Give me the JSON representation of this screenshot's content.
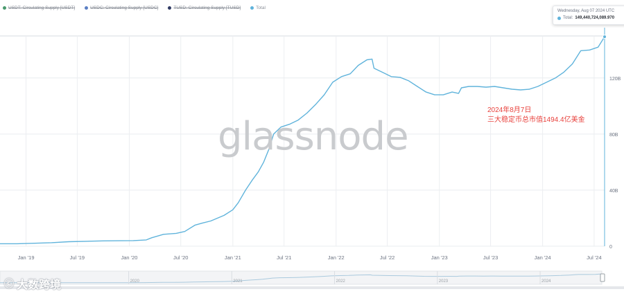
{
  "legend": [
    {
      "label": "USDT: Circulating Supply [USDT]",
      "color": "#4a9a6e",
      "struck": true
    },
    {
      "label": "USDC: Circulating Supply [USDC]",
      "color": "#5b7fc4",
      "struck": true
    },
    {
      "label": "TUSD: Circulating Supply [TUSD]",
      "color": "#2f3a63",
      "struck": true
    },
    {
      "label": "Total",
      "color": "#5fb3db",
      "struck": false
    }
  ],
  "tooltip": {
    "date": "Wednesday, Aug 07 2024 UTC",
    "label": "Total:",
    "value": "149,440,724,089.970"
  },
  "watermark": "glassnode",
  "annotation": {
    "line1": "2024年8月7日",
    "line2": "三大稳定币总市值1494.4亿美金"
  },
  "brand": {
    "icon": "face-logo-icon",
    "text": "大数跨境"
  },
  "colors": {
    "line": "#5fb3db",
    "grid": "#e9ecef",
    "axis_text": "#6b7280",
    "annotation": "#e8413c"
  },
  "navigator": {
    "labels": [
      "2020",
      "2021",
      "2022",
      "2023",
      "2024"
    ]
  },
  "chart_data": {
    "type": "line",
    "title": "",
    "xlabel": "",
    "ylabel": "",
    "x_ticks": [
      "Jan '19",
      "Jul '19",
      "Jan '20",
      "Jul '20",
      "Jan '21",
      "Jul '21",
      "Jan '22",
      "Jul '22",
      "Jan '23",
      "Jul '23",
      "Jan '24",
      "Jul '24"
    ],
    "y_ticks": [
      "0",
      "40B",
      "80B",
      "120B"
    ],
    "y_tick_values": [
      0,
      40,
      80,
      120
    ],
    "ylim": [
      0,
      150
    ],
    "y_unit": "B",
    "grid": true,
    "legend_position": "top-left",
    "series": [
      {
        "name": "Total",
        "x": [
          "2018-10-01",
          "2018-12-01",
          "2019-02-01",
          "2019-04-01",
          "2019-06-01",
          "2019-08-01",
          "2019-10-01",
          "2019-12-01",
          "2020-01-15",
          "2020-03-01",
          "2020-03-20",
          "2020-05-01",
          "2020-06-15",
          "2020-07-15",
          "2020-08-20",
          "2020-09-15",
          "2020-10-15",
          "2020-12-01",
          "2021-01-01",
          "2021-01-20",
          "2021-02-15",
          "2021-03-10",
          "2021-04-01",
          "2021-04-20",
          "2021-05-10",
          "2021-05-25",
          "2021-06-20",
          "2021-07-20",
          "2021-08-20",
          "2021-09-20",
          "2021-10-20",
          "2021-11-20",
          "2021-12-20",
          "2022-01-20",
          "2022-02-20",
          "2022-03-20",
          "2022-04-20",
          "2022-05-08",
          "2022-05-15",
          "2022-06-15",
          "2022-07-15",
          "2022-08-15",
          "2022-09-15",
          "2022-10-15",
          "2022-11-15",
          "2022-12-15",
          "2023-01-15",
          "2023-02-15",
          "2023-03-10",
          "2023-03-20",
          "2023-04-15",
          "2023-05-15",
          "2023-06-15",
          "2023-07-15",
          "2023-08-15",
          "2023-09-15",
          "2023-10-15",
          "2023-11-15",
          "2023-12-15",
          "2024-01-15",
          "2024-02-15",
          "2024-03-15",
          "2024-04-15",
          "2024-05-15",
          "2024-06-15",
          "2024-07-15",
          "2024-08-07"
        ],
        "values": [
          1.8,
          1.8,
          2.1,
          2.5,
          3.2,
          3.5,
          3.8,
          3.9,
          4.0,
          4.5,
          6.0,
          8.5,
          9.2,
          10.5,
          15.0,
          16.5,
          18.0,
          22.0,
          26.0,
          31.0,
          40.0,
          47.0,
          53.0,
          60.0,
          70.0,
          80.0,
          85.0,
          87.0,
          90.0,
          95.0,
          101.0,
          108.0,
          117.0,
          121.0,
          123.0,
          129.0,
          133.0,
          133.5,
          127.0,
          124.0,
          121.0,
          120.5,
          118.0,
          114.0,
          110.0,
          108.0,
          108.0,
          110.0,
          109.0,
          113.0,
          114.0,
          114.0,
          113.5,
          114.0,
          113.0,
          112.0,
          111.5,
          112.0,
          114.0,
          117.0,
          120.0,
          124.0,
          130.0,
          139.5,
          140.0,
          142.0,
          149.44
        ]
      }
    ]
  }
}
